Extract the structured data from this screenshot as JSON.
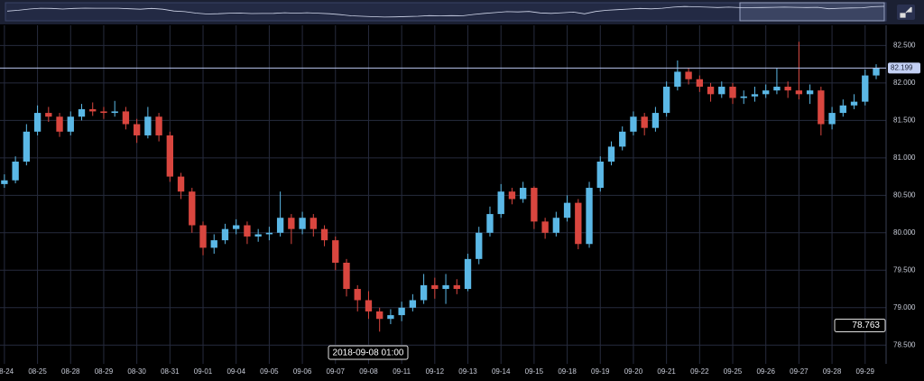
{
  "chart_data": {
    "type": "candlestick",
    "xlim": [
      -0.4,
      79.9
    ],
    "xticks": [
      {
        "value": 0,
        "label": "08-24"
      },
      {
        "value": 3,
        "label": "08-25"
      },
      {
        "value": 6,
        "label": "08-28"
      },
      {
        "value": 9,
        "label": "08-29"
      },
      {
        "value": 12,
        "label": "08-30"
      },
      {
        "value": 15,
        "label": "08-31"
      },
      {
        "value": 18,
        "label": "09-01"
      },
      {
        "value": 21,
        "label": "09-04"
      },
      {
        "value": 24,
        "label": "09-05"
      },
      {
        "value": 27,
        "label": "09-06"
      },
      {
        "value": 30,
        "label": "09-07"
      },
      {
        "value": 33,
        "label": "09-08"
      },
      {
        "value": 36,
        "label": "09-11"
      },
      {
        "value": 39,
        "label": "09-12"
      },
      {
        "value": 42,
        "label": "09-13"
      },
      {
        "value": 45,
        "label": "09-14"
      },
      {
        "value": 48,
        "label": "09-15"
      },
      {
        "value": 51,
        "label": "09-18"
      },
      {
        "value": 54,
        "label": "09-19"
      },
      {
        "value": 57,
        "label": "09-20"
      },
      {
        "value": 60,
        "label": "09-21"
      },
      {
        "value": 63,
        "label": "09-22"
      },
      {
        "value": 66,
        "label": "09-25"
      },
      {
        "value": 69,
        "label": "09-26"
      },
      {
        "value": 72,
        "label": "09-27"
      },
      {
        "value": 75,
        "label": "09-28"
      },
      {
        "value": 78,
        "label": "09-29"
      }
    ],
    "ylim": [
      78.25,
      82.77
    ],
    "yticks": [
      {
        "value": 78.5,
        "label": "78.500"
      },
      {
        "value": 79,
        "label": "79.000"
      },
      {
        "value": 79.5,
        "label": "79.500"
      },
      {
        "value": 80,
        "label": "80.000"
      },
      {
        "value": 80.5,
        "label": "80.500"
      },
      {
        "value": 81,
        "label": "81.000"
      },
      {
        "value": 81.5,
        "label": "81.500"
      },
      {
        "value": 82,
        "label": "82.000"
      },
      {
        "value": 82.5,
        "label": "82.500"
      }
    ],
    "grid": true,
    "up_color": "#5bb8e6",
    "down_color": "#d9463f",
    "candles": {
      "open": [
        80.65,
        80.7,
        80.95,
        81.35,
        81.6,
        81.55,
        81.35,
        81.55,
        81.65,
        81.62,
        81.6,
        81.62,
        81.45,
        81.3,
        81.55,
        81.3,
        80.75,
        80.55,
        80.1,
        79.8,
        79.9,
        80.05,
        80.1,
        79.95,
        79.98,
        80.0,
        80.2,
        80.05,
        80.2,
        80.05,
        79.9,
        79.6,
        79.25,
        79.1,
        78.95,
        78.85,
        78.9,
        79.0,
        79.1,
        79.3,
        79.25,
        79.3,
        79.25,
        79.65,
        80.0,
        80.25,
        80.55,
        80.45,
        80.6,
        80.15,
        80.0,
        80.2,
        80.4,
        79.85,
        80.6,
        80.95,
        81.15,
        81.35,
        81.55,
        81.4,
        81.6,
        81.95,
        82.15,
        82.05,
        81.95,
        81.85,
        81.95,
        81.8,
        81.82,
        81.85,
        81.9,
        81.95,
        81.9,
        81.85,
        81.9,
        81.45,
        81.6,
        81.7,
        81.75,
        82.1
      ],
      "high": [
        80.78,
        81.02,
        81.45,
        81.7,
        81.68,
        81.6,
        81.62,
        81.72,
        81.74,
        81.68,
        81.76,
        81.68,
        81.52,
        81.68,
        81.6,
        81.35,
        80.8,
        80.6,
        80.15,
        79.98,
        80.12,
        80.18,
        80.15,
        80.05,
        80.08,
        80.55,
        80.25,
        80.28,
        80.25,
        80.1,
        79.95,
        79.65,
        79.3,
        79.22,
        79.0,
        78.98,
        79.08,
        79.18,
        79.45,
        79.4,
        79.45,
        79.38,
        79.72,
        80.08,
        80.35,
        80.65,
        80.6,
        80.68,
        80.62,
        80.2,
        80.28,
        80.5,
        80.45,
        80.68,
        81.02,
        81.22,
        81.42,
        81.62,
        81.6,
        81.68,
        82.02,
        82.3,
        82.2,
        82.1,
        82.0,
        82.02,
        82.0,
        81.9,
        81.95,
        81.98,
        82.2,
        82.02,
        82.55,
        81.98,
        81.95,
        81.68,
        81.78,
        81.85,
        82.18,
        82.25
      ],
      "low": [
        80.6,
        80.66,
        80.9,
        81.3,
        81.48,
        81.28,
        81.3,
        81.5,
        81.56,
        81.52,
        81.55,
        81.38,
        81.2,
        81.26,
        81.22,
        80.68,
        80.45,
        80.0,
        79.7,
        79.72,
        79.85,
        79.98,
        79.85,
        79.88,
        79.9,
        79.95,
        79.85,
        79.98,
        79.95,
        79.82,
        79.5,
        79.15,
        78.95,
        78.85,
        78.68,
        78.78,
        78.82,
        78.95,
        79.05,
        79.12,
        79.05,
        79.18,
        79.22,
        79.58,
        79.95,
        80.2,
        80.38,
        80.4,
        80.05,
        79.92,
        79.95,
        80.15,
        79.78,
        79.8,
        80.55,
        80.9,
        81.1,
        81.3,
        81.3,
        81.35,
        81.55,
        81.9,
        81.98,
        81.88,
        81.75,
        81.8,
        81.72,
        81.72,
        81.75,
        81.8,
        81.85,
        81.8,
        81.78,
        81.72,
        81.3,
        81.38,
        81.55,
        81.65,
        81.7,
        82.05
      ],
      "close": [
        80.7,
        80.95,
        81.35,
        81.6,
        81.55,
        81.35,
        81.55,
        81.65,
        81.62,
        81.6,
        81.62,
        81.45,
        81.3,
        81.55,
        81.3,
        80.75,
        80.55,
        80.1,
        79.8,
        79.9,
        80.05,
        80.1,
        79.95,
        79.98,
        80.0,
        80.2,
        80.05,
        80.2,
        80.05,
        79.9,
        79.6,
        79.25,
        79.1,
        78.95,
        78.85,
        78.9,
        79.0,
        79.1,
        79.3,
        79.25,
        79.3,
        79.25,
        79.65,
        80.0,
        80.25,
        80.55,
        80.45,
        80.6,
        80.15,
        80.0,
        80.2,
        80.4,
        79.85,
        80.6,
        80.95,
        81.15,
        81.35,
        81.55,
        81.4,
        81.6,
        81.95,
        82.15,
        82.05,
        81.95,
        81.85,
        81.95,
        81.8,
        81.82,
        81.85,
        81.9,
        81.95,
        81.9,
        81.85,
        81.9,
        81.45,
        81.6,
        81.7,
        81.75,
        82.1,
        82.2
      ]
    },
    "last_price": 82.199,
    "crosshair_price": 78.763,
    "crosshair_time": "2018-09-08 01:00"
  }
}
